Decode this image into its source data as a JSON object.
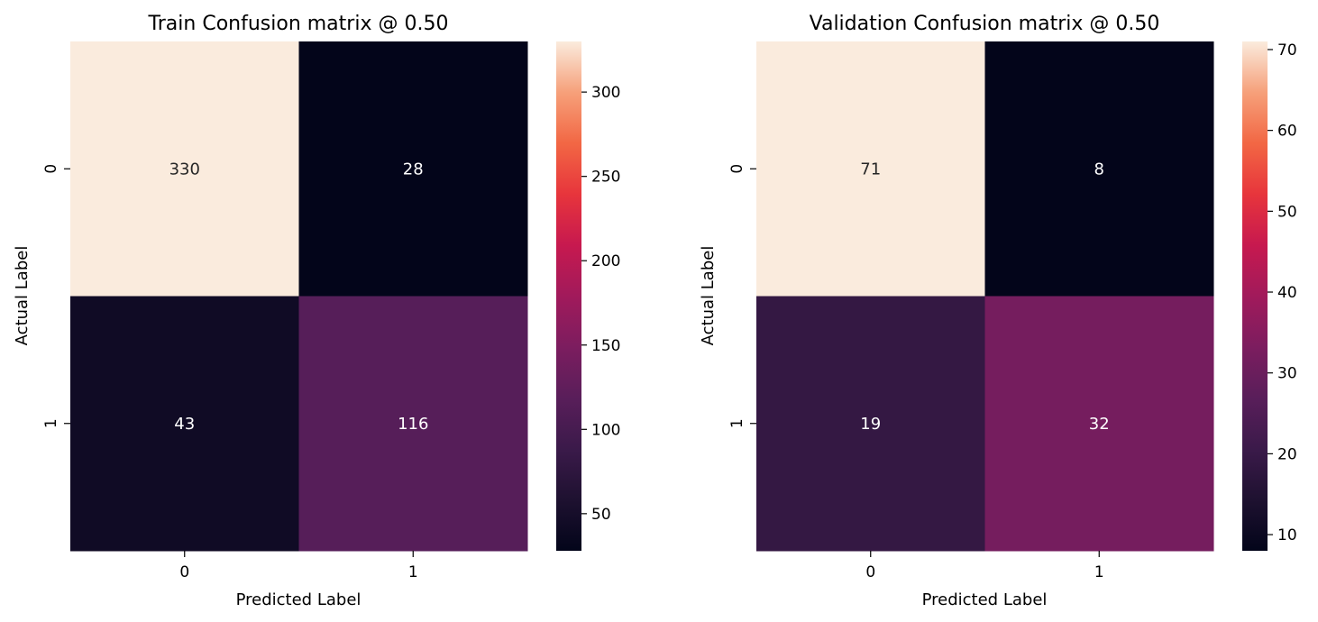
{
  "chart_data": [
    {
      "type": "heatmap",
      "title": "Train Confusion matrix @ 0.50",
      "xlabel": "Predicted Label",
      "ylabel": "Actual Label",
      "x_categories": [
        "0",
        "1"
      ],
      "y_categories": [
        "0",
        "1"
      ],
      "values": [
        [
          330,
          28
        ],
        [
          43,
          116
        ]
      ],
      "colormap": "rocket",
      "colorbar": {
        "min": 28,
        "max": 330,
        "ticks": [
          50,
          100,
          150,
          200,
          250,
          300
        ]
      }
    },
    {
      "type": "heatmap",
      "title": "Validation Confusion matrix @ 0.50",
      "xlabel": "Predicted Label",
      "ylabel": "Actual Label",
      "x_categories": [
        "0",
        "1"
      ],
      "y_categories": [
        "0",
        "1"
      ],
      "values": [
        [
          71,
          8
        ],
        [
          19,
          32
        ]
      ],
      "colormap": "rocket",
      "colorbar": {
        "min": 8,
        "max": 71,
        "ticks": [
          10,
          20,
          30,
          40,
          50,
          60,
          70
        ]
      }
    }
  ]
}
